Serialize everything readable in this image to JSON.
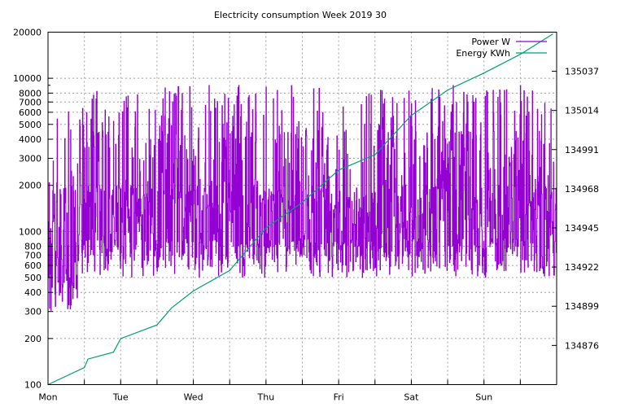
{
  "chart_data": {
    "type": "line",
    "title": "Electricity consumption Week 2019 30",
    "xlabel": "",
    "ylabel": "",
    "grid": true,
    "legend_placement": "top-right",
    "x_ticks": [
      "Mon",
      "Tue",
      "Wed",
      "Thu",
      "Fri",
      "Sat",
      "Sun"
    ],
    "y_left": {
      "scale": "log",
      "range": [
        100,
        20000
      ],
      "ticks": [
        {
          "v": 100,
          "label": "100"
        },
        {
          "v": 200,
          "label": "200"
        },
        {
          "v": 300,
          "label": "300"
        },
        {
          "v": 400,
          "label": "400"
        },
        {
          "v": 500,
          "label": "500"
        },
        {
          "v": 600,
          "label": "600"
        },
        {
          "v": 700,
          "label": "700"
        },
        {
          "v": 800,
          "label": "800"
        },
        {
          "v": 1000,
          "label": "1000"
        },
        {
          "v": 2000,
          "label": "2000"
        },
        {
          "v": 3000,
          "label": "3000"
        },
        {
          "v": 4000,
          "label": "4000"
        },
        {
          "v": 5000,
          "label": "5000"
        },
        {
          "v": 6000,
          "label": "6000"
        },
        {
          "v": 7000,
          "label": "7000"
        },
        {
          "v": 8000,
          "label": "8000"
        },
        {
          "v": 10000,
          "label": "10000"
        },
        {
          "v": 20000,
          "label": "20000"
        }
      ]
    },
    "y_right": {
      "scale": "log",
      "range": [
        134853,
        135060
      ],
      "ticks": [
        "134876",
        "134899",
        "134922",
        "134945",
        "134968",
        "134991",
        "135014",
        "135037"
      ]
    },
    "series": [
      {
        "name": "Power W",
        "color": "#9400d3",
        "axis": "left",
        "style": "fluctuating between roughly 300 W and 9000 W throughout the week",
        "values_range": [
          300,
          9200
        ]
      },
      {
        "name": "Energy KWh",
        "color": "#009e73",
        "axis": "right",
        "x": [
          0,
          0.5,
          0.55,
          0.9,
          1.0,
          1.5,
          1.7,
          2.0,
          2.5,
          3.0,
          3.5,
          4.0,
          4.5,
          5.0,
          5.5,
          6.0,
          6.5,
          6.95
        ],
        "values": [
          134853,
          134863,
          134868,
          134872,
          134880,
          134888,
          134898,
          134908,
          134920,
          134945,
          134960,
          134979,
          134988,
          135011,
          135026,
          135036,
          135047,
          135059
        ]
      }
    ]
  }
}
